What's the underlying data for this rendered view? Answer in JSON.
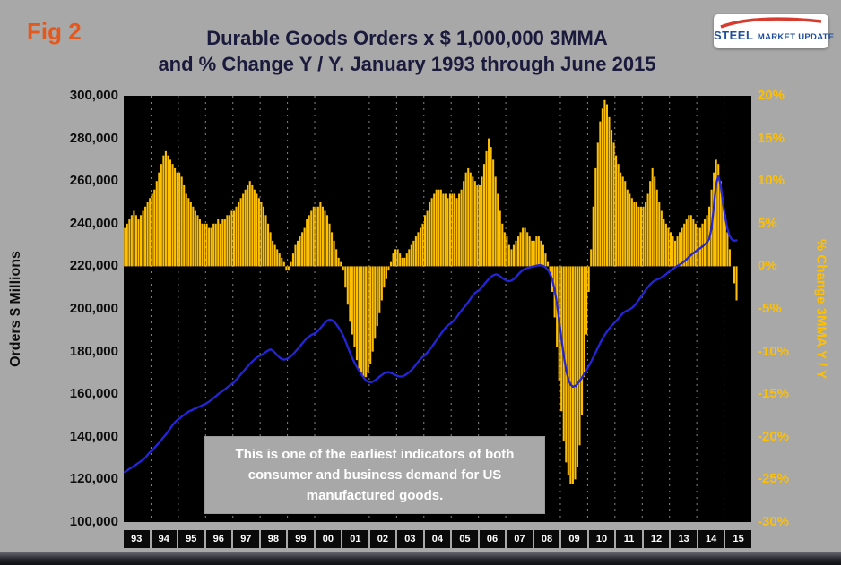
{
  "fig_label": "Fig 2",
  "title": {
    "line1": "Durable Goods Orders x $ 1,000,000 3MMA",
    "line2": "and % Change Y / Y. January 1993 through June 2015"
  },
  "logo": {
    "steel": "STEEL",
    "rest": "MARKET UPDATE"
  },
  "annotation": {
    "line1": "This is one of the earliest indicators of both",
    "line2": "consumer and business demand for US",
    "line3": "manufactured goods."
  },
  "left_axis": {
    "title": "Orders $ Millions",
    "ticks": [
      "300,000",
      "280,000",
      "260,000",
      "240,000",
      "220,000",
      "200,000",
      "180,000",
      "160,000",
      "140,000",
      "120,000",
      "100,000"
    ]
  },
  "right_axis": {
    "title": "% Change 3MMA Y / Y",
    "ticks": [
      "20%",
      "15%",
      "10%",
      "5%",
      "0%",
      "-5%",
      "-10%",
      "-15%",
      "-20%",
      "-25%",
      "-30%"
    ]
  },
  "colors": {
    "page_bg": "#A8A8A8",
    "plot_bg": "#000000",
    "bar": "#FFC000",
    "line": "#2525D8",
    "fig_accent": "#E4581C",
    "title_text": "#1A1A3C",
    "right_axis_text": "#FFC000",
    "gridline": "#BDBDBD"
  },
  "chart_data": {
    "type": "combo",
    "title": "Durable Goods Orders x $ 1,000,000 3MMA and % Change Y / Y. January 1993 through June 2015",
    "x": {
      "unit": "month",
      "start": "1993-01",
      "end": "2015-06",
      "n_points": 270,
      "years": [
        "93",
        "94",
        "95",
        "96",
        "97",
        "98",
        "99",
        "00",
        "01",
        "02",
        "03",
        "04",
        "05",
        "06",
        "07",
        "08",
        "09",
        "10",
        "11",
        "12",
        "13",
        "14",
        "15"
      ]
    },
    "left_axis": {
      "label": "Orders $ Millions",
      "min": 100000,
      "max": 300000,
      "tick_step": 20000
    },
    "right_axis": {
      "label": "% Change 3MMA Y / Y",
      "min": -30,
      "max": 20,
      "tick_step": 5,
      "unit": "%"
    },
    "grid": {
      "vertical_dashed_per_year": true,
      "horizontal": false
    },
    "legend": "none",
    "series": [
      {
        "name": "Durable Goods Orders ($ x 1,000,000, 3MMA)",
        "type": "line",
        "axis": "left",
        "color": "#2525D8",
        "values": [
          123500,
          124200,
          125000,
          125600,
          126300,
          127000,
          127800,
          128500,
          129300,
          130200,
          131500,
          132800,
          133500,
          134800,
          136000,
          137200,
          138500,
          139800,
          141000,
          142500,
          144000,
          145500,
          146800,
          147800,
          148500,
          149500,
          150300,
          151000,
          151800,
          152300,
          152800,
          153200,
          153800,
          154200,
          154800,
          155200,
          155800,
          156500,
          157300,
          158200,
          159000,
          160000,
          160800,
          161500,
          162300,
          163200,
          164000,
          164800,
          165500,
          166800,
          168000,
          169300,
          170500,
          171800,
          173000,
          174200,
          175300,
          176300,
          177200,
          177800,
          178300,
          179000,
          179800,
          180500,
          181000,
          180500,
          179500,
          178300,
          177200,
          176500,
          176200,
          176500,
          177000,
          177800,
          178800,
          180000,
          181200,
          182500,
          183800,
          185000,
          186200,
          187000,
          187800,
          188300,
          188800,
          189800,
          191000,
          192300,
          193500,
          194500,
          195000,
          194800,
          194000,
          192800,
          191200,
          189500,
          187500,
          185000,
          182300,
          179500,
          177000,
          174800,
          172800,
          171000,
          169300,
          167800,
          166500,
          165800,
          165500,
          165800,
          166500,
          167300,
          168200,
          169000,
          169800,
          170200,
          170300,
          170000,
          169500,
          169000,
          168500,
          168300,
          168300,
          168800,
          169500,
          170300,
          171300,
          172500,
          173800,
          175200,
          176500,
          177500,
          178300,
          179500,
          180800,
          182200,
          183800,
          185300,
          186800,
          188300,
          189800,
          191200,
          192300,
          193000,
          193800,
          195000,
          196300,
          197800,
          199200,
          200500,
          201800,
          203200,
          204800,
          206300,
          207500,
          208300,
          209000,
          210200,
          211500,
          212800,
          214000,
          215000,
          215800,
          216200,
          216000,
          215300,
          214500,
          213800,
          213200,
          213000,
          213300,
          214000,
          215000,
          216200,
          217300,
          218200,
          218800,
          219200,
          219500,
          219800,
          220000,
          220300,
          220500,
          220500,
          220200,
          219500,
          218300,
          216500,
          213500,
          209000,
          202500,
          194500,
          186000,
          178000,
          171500,
          167000,
          164500,
          163500,
          163800,
          164800,
          166200,
          167800,
          169500,
          171300,
          173200,
          175200,
          177300,
          179500,
          181800,
          184000,
          186000,
          187800,
          189300,
          190800,
          192000,
          193200,
          194300,
          195500,
          196800,
          198000,
          198800,
          199300,
          199800,
          200500,
          201500,
          202800,
          204200,
          205800,
          207300,
          208800,
          210200,
          211500,
          212500,
          213300,
          213800,
          214200,
          214800,
          215500,
          216300,
          217200,
          218000,
          218800,
          219500,
          220200,
          220800,
          221500,
          222300,
          223300,
          224300,
          225300,
          226200,
          227000,
          227800,
          228500,
          229300,
          230200,
          231300,
          233000,
          238000,
          248000,
          258500,
          262500,
          258000,
          250000,
          243000,
          237500,
          234000,
          232500,
          232000,
          232200
        ]
      },
      {
        "name": "% Change 3MMA Y / Y",
        "type": "bar",
        "axis": "right",
        "color": "#FFC000",
        "values": [
          4.5,
          5,
          5.5,
          6,
          6.5,
          6,
          5.5,
          6,
          6.5,
          7,
          7.5,
          8,
          8.5,
          9,
          10,
          11,
          12,
          13,
          13.5,
          13,
          12.5,
          12,
          11.5,
          11,
          11,
          10.5,
          9.5,
          8.5,
          8,
          7.5,
          7,
          6.5,
          6,
          5.5,
          5,
          5,
          5,
          4.5,
          4.5,
          5,
          5,
          5.5,
          5,
          5.5,
          5.5,
          6,
          6,
          6.5,
          6.5,
          7,
          7.5,
          8,
          8.5,
          9,
          9.5,
          10,
          9.5,
          9,
          8.5,
          8,
          7.5,
          7,
          6,
          5,
          4,
          3,
          2.5,
          2,
          1.5,
          1,
          0.5,
          -0.5,
          -0.5,
          0.5,
          1.5,
          2.5,
          3,
          3.5,
          4,
          4.5,
          5.5,
          6,
          6.5,
          7,
          7,
          7,
          7.5,
          7,
          6.5,
          6,
          5,
          4,
          3,
          2,
          1,
          0.5,
          -0.5,
          -2.5,
          -4.5,
          -6.5,
          -8,
          -9.5,
          -11,
          -12,
          -12.5,
          -13,
          -13,
          -12.5,
          -11.5,
          -10,
          -8.5,
          -7,
          -5.5,
          -4,
          -2.5,
          -1.5,
          -0.5,
          0.5,
          1.5,
          2,
          2,
          1.5,
          1,
          1,
          1.5,
          2,
          2.5,
          3,
          3.5,
          4,
          4.5,
          5,
          6,
          6.5,
          7.5,
          8,
          8.5,
          9,
          9,
          9,
          8.5,
          8.5,
          8,
          8.5,
          8.5,
          8.5,
          8,
          8.5,
          9,
          10,
          11,
          11.5,
          11,
          10.5,
          10,
          9.5,
          9.5,
          10.5,
          12,
          13.5,
          15,
          14,
          12.5,
          10.5,
          8.5,
          6.5,
          5,
          4,
          3.5,
          2.5,
          2,
          2.5,
          3,
          3.5,
          4,
          4.5,
          4.5,
          4,
          3.5,
          3,
          3,
          3.5,
          3.5,
          3,
          2.5,
          1.5,
          0.5,
          -1,
          -3,
          -6,
          -9.5,
          -13.5,
          -17,
          -20.5,
          -23,
          -24.5,
          -25.5,
          -25.5,
          -25,
          -23.5,
          -21,
          -17.5,
          -13,
          -8,
          -3,
          2,
          7,
          11.5,
          14.5,
          17,
          18.5,
          19.5,
          19,
          17.5,
          16,
          14.5,
          13,
          12,
          11,
          10.5,
          10,
          9,
          8.5,
          8,
          7.5,
          7.5,
          7,
          7,
          7,
          7.5,
          8.5,
          10,
          11.5,
          10.5,
          9,
          7.5,
          6.5,
          5.5,
          5,
          4.5,
          4,
          3.5,
          3,
          3.5,
          4,
          4.5,
          5,
          5.5,
          6,
          6,
          5.5,
          5,
          4.5,
          4.5,
          5,
          5.5,
          6,
          7,
          9,
          11,
          12.5,
          12,
          10,
          8,
          6,
          4,
          2,
          0,
          -2,
          -4
        ]
      }
    ]
  }
}
